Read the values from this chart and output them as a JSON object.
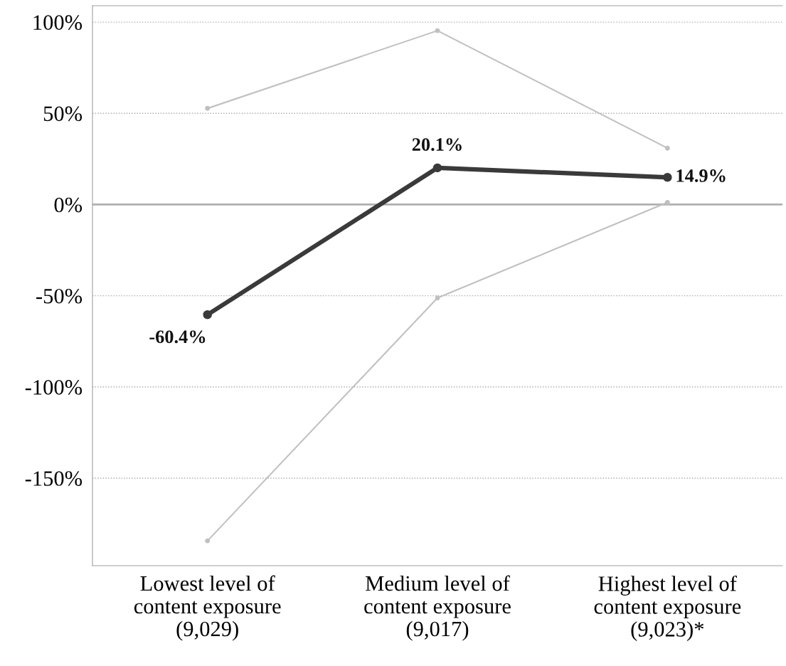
{
  "chart_data": {
    "type": "line",
    "categories": [
      "Lowest level of\ncontent exposure\n(9,029)",
      "Medium level of\ncontent exposure\n(9,017)",
      "Highest level of\ncontent exposure\n(9,023)*"
    ],
    "series": [
      {
        "color": "#c0c0c0",
        "values": [
          52.7,
          95.3,
          30.9
        ]
      },
      {
        "color": "#c0c0c0",
        "values": [
          -184.4,
          -51.2,
          1.2
        ]
      },
      {
        "color": "#3a3a3a",
        "values": [
          -60.4,
          20.1,
          14.9
        ],
        "value_labels": [
          "-60.4%",
          "20.1%",
          "14.9%"
        ]
      }
    ],
    "ylim": [
      -198,
      109
    ],
    "yticks": [
      {
        "value": -150,
        "label": "-150%"
      },
      {
        "value": -100,
        "label": "-100%"
      },
      {
        "value": -50,
        "label": "-50%"
      },
      {
        "value": 0,
        "label": "0%"
      },
      {
        "value": 50,
        "label": "50%"
      },
      {
        "value": 100,
        "label": "100%"
      }
    ],
    "grid": "y",
    "ref_lines": [
      {
        "axis": "y",
        "value": 0,
        "color": "#b0b0b0",
        "line_style": "solid"
      }
    ],
    "marker": "circle",
    "line_style": "solid"
  }
}
